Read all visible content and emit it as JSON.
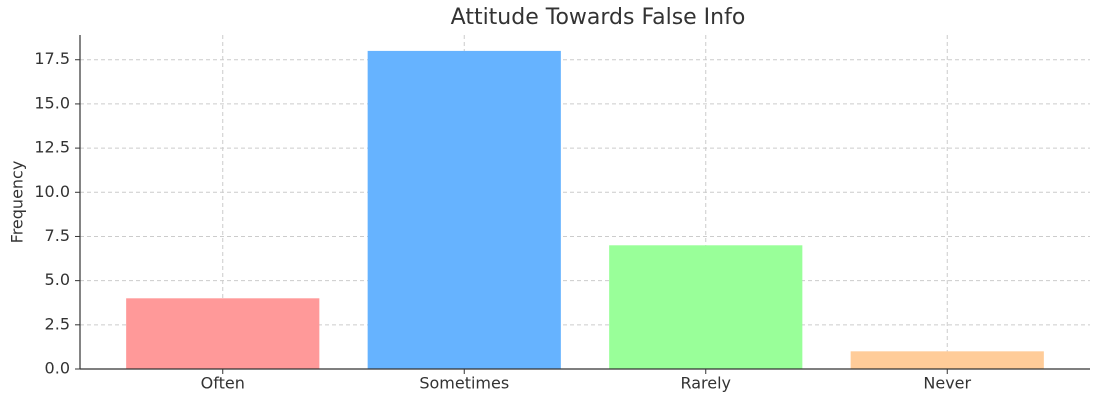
{
  "chart_data": {
    "type": "bar",
    "title": "Attitude Towards False Info",
    "ylabel": "Frequency",
    "categories": [
      "Often",
      "Sometimes",
      "Rarely",
      "Never"
    ],
    "values": [
      4,
      18,
      7,
      1
    ],
    "colors": [
      "#ff9999",
      "#66b3ff",
      "#99ff99",
      "#ffcc99"
    ],
    "ylim": [
      0,
      18.9
    ],
    "yticks": [
      {
        "value": 0,
        "label": "0.0"
      },
      2.5,
      {
        "value": 5,
        "label": "5.0"
      },
      7.5,
      {
        "value": 10,
        "label": "10.0"
      },
      12.5,
      {
        "value": 15,
        "label": "15.0"
      },
      17.5
    ],
    "grid": true
  }
}
